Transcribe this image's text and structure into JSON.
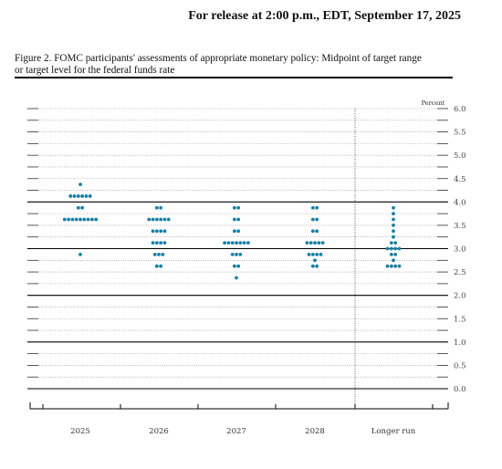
{
  "header": {
    "release_text": "For release at 2:00 p.m., EDT, September 17, 2025"
  },
  "figure": {
    "title_line1": "Figure 2. FOMC participants' assessments of appropriate monetary policy: Midpoint of target range",
    "title_line2": "or target level for the federal funds rate"
  },
  "colors": {
    "dot": "#1a7fa3",
    "axis": "#000000",
    "grid": "#888888"
  },
  "chart_data": {
    "type": "scatter",
    "title": "FOMC participants' assessments of appropriate monetary policy: Midpoint of target range or target level for the federal funds rate",
    "unit_label": "Percent",
    "ylim": [
      0,
      6
    ],
    "yticks": [
      "6.0",
      "5.5",
      "5.0",
      "4.5",
      "4.0",
      "3.5",
      "3.0",
      "2.5",
      "2.0",
      "1.5",
      "1.0",
      "0.5",
      "0.0"
    ],
    "categories": [
      "2025",
      "2026",
      "2027",
      "2028",
      "Longer run"
    ],
    "dots": [
      {
        "category": "2025",
        "counts": [
          [
            4.375,
            1
          ],
          [
            4.125,
            6
          ],
          [
            3.875,
            2
          ],
          [
            3.625,
            9
          ],
          [
            2.875,
            1
          ]
        ]
      },
      {
        "category": "2026",
        "counts": [
          [
            3.875,
            2
          ],
          [
            3.625,
            6
          ],
          [
            3.375,
            4
          ],
          [
            3.125,
            4
          ],
          [
            2.875,
            3
          ],
          [
            2.625,
            2
          ]
        ]
      },
      {
        "category": "2027",
        "counts": [
          [
            3.875,
            2
          ],
          [
            3.625,
            2
          ],
          [
            3.375,
            2
          ],
          [
            3.125,
            7
          ],
          [
            2.875,
            3
          ],
          [
            2.625,
            2
          ],
          [
            2.375,
            1
          ]
        ]
      },
      {
        "category": "2028",
        "counts": [
          [
            3.875,
            2
          ],
          [
            3.625,
            2
          ],
          [
            3.375,
            2
          ],
          [
            3.125,
            5
          ],
          [
            2.875,
            4
          ],
          [
            2.75,
            1
          ],
          [
            2.625,
            2
          ]
        ]
      },
      {
        "category": "Longer run",
        "counts": [
          [
            3.875,
            1
          ],
          [
            3.75,
            1
          ],
          [
            3.625,
            1
          ],
          [
            3.5,
            1
          ],
          [
            3.375,
            1
          ],
          [
            3.25,
            1
          ],
          [
            3.125,
            2
          ],
          [
            3.0,
            4
          ],
          [
            2.875,
            2
          ],
          [
            2.75,
            1
          ],
          [
            2.625,
            4
          ]
        ]
      }
    ],
    "grid": true,
    "major_lines_at": [
      0,
      1,
      2,
      3,
      4
    ]
  }
}
